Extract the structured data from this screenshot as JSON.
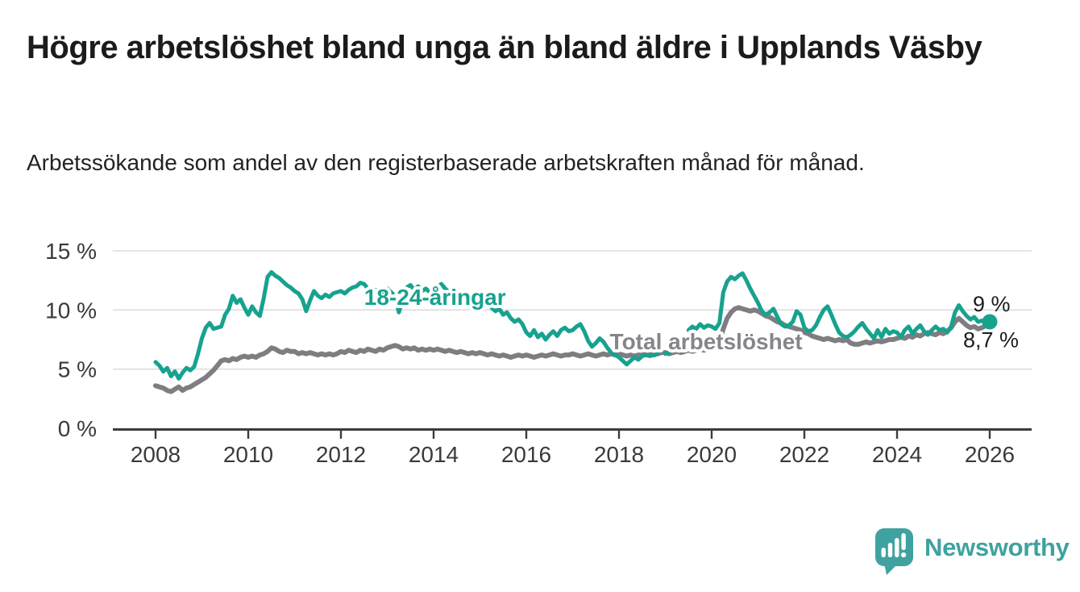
{
  "header": {
    "title": "Högre arbetslöshet bland unga än bland äldre i Upplands Väsby",
    "subtitle": "Arbetssökande som andel av den registerbaserade arbetskraften månad för månad."
  },
  "chart_data": {
    "type": "line",
    "x_unit": "monthly, decimal years",
    "x_start": 2008.0,
    "x_step_months": 1,
    "x_range": [
      2007.1,
      2026.9
    ],
    "ylim": [
      0,
      15
    ],
    "grid": "horizontal",
    "yticks": [
      {
        "value": 0,
        "label": "0 %"
      },
      {
        "value": 5,
        "label": "5 %"
      },
      {
        "value": 10,
        "label": "10 %"
      },
      {
        "value": 15,
        "label": "15 %"
      }
    ],
    "xticks": [
      {
        "value": 2008,
        "label": "2008"
      },
      {
        "value": 2010,
        "label": "2010"
      },
      {
        "value": 2012,
        "label": "2012"
      },
      {
        "value": 2014,
        "label": "2014"
      },
      {
        "value": 2016,
        "label": "2016"
      },
      {
        "value": 2018,
        "label": "2018"
      },
      {
        "value": 2020,
        "label": "2020"
      },
      {
        "value": 2022,
        "label": "2022"
      },
      {
        "value": 2024,
        "label": "2024"
      },
      {
        "value": 2026,
        "label": "2026"
      }
    ],
    "series": [
      {
        "name": "Total arbetslöshet",
        "color": "#7f7d81",
        "label_color": "#87858a",
        "stroke_width": 6,
        "end_label": "8,7 %",
        "end_value": 8.7,
        "label_anchor": {
          "x": 2019.88,
          "y": 7.35
        },
        "values": [
          3.6,
          3.5,
          3.4,
          3.2,
          3.1,
          3.3,
          3.5,
          3.2,
          3.4,
          3.5,
          3.7,
          3.9,
          4.1,
          4.3,
          4.6,
          4.9,
          5.3,
          5.7,
          5.8,
          5.7,
          5.9,
          5.8,
          6.0,
          6.1,
          6.0,
          6.1,
          6.0,
          6.2,
          6.3,
          6.5,
          6.8,
          6.7,
          6.5,
          6.4,
          6.6,
          6.5,
          6.5,
          6.3,
          6.4,
          6.3,
          6.4,
          6.3,
          6.2,
          6.3,
          6.2,
          6.3,
          6.2,
          6.3,
          6.5,
          6.4,
          6.6,
          6.5,
          6.4,
          6.6,
          6.5,
          6.7,
          6.6,
          6.5,
          6.7,
          6.6,
          6.8,
          6.9,
          7.0,
          6.9,
          6.7,
          6.8,
          6.7,
          6.8,
          6.6,
          6.7,
          6.6,
          6.7,
          6.6,
          6.7,
          6.6,
          6.5,
          6.6,
          6.5,
          6.4,
          6.5,
          6.4,
          6.3,
          6.4,
          6.3,
          6.4,
          6.3,
          6.2,
          6.3,
          6.2,
          6.1,
          6.2,
          6.1,
          6.0,
          6.1,
          6.2,
          6.1,
          6.2,
          6.1,
          6.0,
          6.1,
          6.2,
          6.1,
          6.2,
          6.3,
          6.2,
          6.1,
          6.2,
          6.2,
          6.3,
          6.2,
          6.1,
          6.2,
          6.3,
          6.2,
          6.1,
          6.2,
          6.3,
          6.2,
          6.3,
          6.2,
          6.3,
          6.2,
          6.1,
          6.2,
          6.1,
          6.2,
          6.3,
          6.2,
          6.3,
          6.2,
          6.3,
          6.4,
          6.4,
          6.3,
          6.4,
          6.5,
          6.4,
          6.5,
          6.6,
          6.5,
          6.6,
          6.7,
          6.6,
          6.7,
          6.8,
          6.9,
          7.3,
          8.4,
          9.3,
          9.8,
          10.1,
          10.2,
          10.1,
          10.0,
          9.9,
          10.0,
          9.9,
          9.7,
          9.5,
          9.4,
          9.2,
          9.0,
          8.9,
          8.7,
          8.6,
          8.5,
          8.4,
          8.3,
          8.1,
          8.0,
          7.8,
          7.7,
          7.6,
          7.5,
          7.6,
          7.5,
          7.4,
          7.5,
          7.4,
          7.5,
          7.2,
          7.1,
          7.1,
          7.2,
          7.3,
          7.2,
          7.3,
          7.4,
          7.3,
          7.4,
          7.5,
          7.5,
          7.6,
          7.7,
          7.6,
          7.8,
          7.7,
          7.9,
          7.8,
          8.0,
          8.1,
          8.0,
          7.9,
          8.1,
          8.0,
          8.2,
          8.5,
          9.0,
          9.3,
          9.0,
          8.7,
          8.5,
          8.6,
          8.4,
          8.5,
          8.7,
          8.7
        ]
      },
      {
        "name": "18-24-åringar",
        "color": "#17a28f",
        "label_color": "#17a28f",
        "stroke_width": 5,
        "end_label": "9 %",
        "end_value": 9.0,
        "end_dot": true,
        "label_anchor": {
          "x": 2014.03,
          "y": 11.1
        },
        "values": [
          5.6,
          5.3,
          4.8,
          5.1,
          4.4,
          4.8,
          4.2,
          4.7,
          5.1,
          4.9,
          5.2,
          6.3,
          7.6,
          8.5,
          8.9,
          8.4,
          8.5,
          8.6,
          9.6,
          10.1,
          11.2,
          10.6,
          10.9,
          10.2,
          9.6,
          10.3,
          9.8,
          9.5,
          11.0,
          12.8,
          13.2,
          12.9,
          12.7,
          12.4,
          12.1,
          11.9,
          11.6,
          11.4,
          10.9,
          9.9,
          10.8,
          11.6,
          11.2,
          11.0,
          11.3,
          11.1,
          11.4,
          11.5,
          11.6,
          11.4,
          11.7,
          11.9,
          12.0,
          12.3,
          12.2,
          11.8,
          11.5,
          11.7,
          11.4,
          11.6,
          11.8,
          11.5,
          11.2,
          9.8,
          10.9,
          11.9,
          12.1,
          11.7,
          12.0,
          11.6,
          11.8,
          11.5,
          11.6,
          11.9,
          12.2,
          11.8,
          11.5,
          11.7,
          11.3,
          11.5,
          11.1,
          10.9,
          11.2,
          10.8,
          10.9,
          10.5,
          10.7,
          10.2,
          9.9,
          10.1,
          9.6,
          9.8,
          9.3,
          9.0,
          9.2,
          8.8,
          8.1,
          7.8,
          8.3,
          7.7,
          8.0,
          7.5,
          7.9,
          8.2,
          7.8,
          8.3,
          8.5,
          8.2,
          8.3,
          8.6,
          8.8,
          8.2,
          7.4,
          6.9,
          7.2,
          7.6,
          7.3,
          6.8,
          6.4,
          6.2,
          6.0,
          5.7,
          5.4,
          5.7,
          6.0,
          5.8,
          6.1,
          6.2,
          6.1,
          6.2,
          6.3,
          null,
          6.3,
          6.4,
          null,
          null,
          null,
          null,
          8.3,
          8.6,
          8.4,
          8.8,
          8.5,
          8.7,
          8.6,
          8.4,
          8.9,
          11.5,
          12.4,
          12.8,
          12.6,
          12.9,
          13.1,
          12.5,
          11.8,
          11.2,
          10.6,
          9.9,
          9.6,
          9.8,
          10.1,
          9.4,
          8.8,
          8.6,
          8.7,
          9.0,
          9.9,
          9.6,
          8.5,
          8.2,
          8.3,
          8.7,
          9.4,
          10.0,
          10.3,
          9.6,
          8.8,
          8.1,
          7.8,
          7.7,
          7.9,
          8.2,
          8.6,
          8.9,
          8.4,
          8.0,
          7.6,
          8.3,
          7.7,
          8.4,
          8.0,
          8.2,
          8.1,
          7.7,
          8.3,
          8.6,
          8.0,
          8.4,
          8.7,
          8.2,
          7.9,
          8.3,
          8.6,
          8.3,
          8.4,
          8.1,
          8.6,
          9.8,
          10.4,
          9.9,
          9.5,
          9.2,
          9.4,
          9.0,
          9.1,
          9.0,
          9.0
        ]
      }
    ]
  },
  "logo": {
    "text": "Newsworthy",
    "color": "#3fa2a0"
  }
}
